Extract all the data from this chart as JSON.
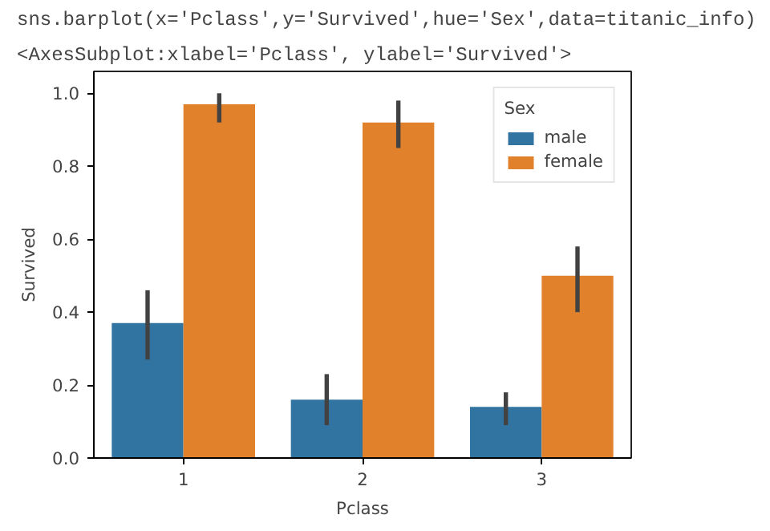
{
  "chart_data": {
    "type": "bar",
    "annotations": [
      "sns.barplot(x='Pclass',y='Survived',hue='Sex',data=titanic_info)",
      "<AxesSubplot:xlabel='Pclass', ylabel='Survived'>"
    ],
    "xlabel": "Pclass",
    "ylabel": "Survived",
    "legend_title": "Sex",
    "categories": [
      "1",
      "2",
      "3"
    ],
    "series": [
      {
        "name": "male",
        "color": "#3274a1",
        "values": [
          0.37,
          0.16,
          0.14
        ],
        "errors": [
          [
            0.27,
            0.46
          ],
          [
            0.09,
            0.23
          ],
          [
            0.09,
            0.18
          ]
        ]
      },
      {
        "name": "female",
        "color": "#e1812c",
        "values": [
          0.97,
          0.92,
          0.5
        ],
        "errors": [
          [
            0.92,
            1.0
          ],
          [
            0.85,
            0.98
          ],
          [
            0.4,
            0.58
          ]
        ]
      }
    ],
    "ylim": [
      0,
      1.06
    ],
    "yticks": [
      {
        "value": 0,
        "label": "0.0"
      },
      {
        "value": 0.2,
        "label": "0.2"
      },
      {
        "value": 0.4,
        "label": "0.4"
      },
      {
        "value": 0.6,
        "label": "0.6"
      },
      {
        "value": 0.8,
        "label": "0.8"
      },
      {
        "value": 1.0,
        "label": "1.0"
      }
    ],
    "legend": "top right",
    "grid": false
  }
}
